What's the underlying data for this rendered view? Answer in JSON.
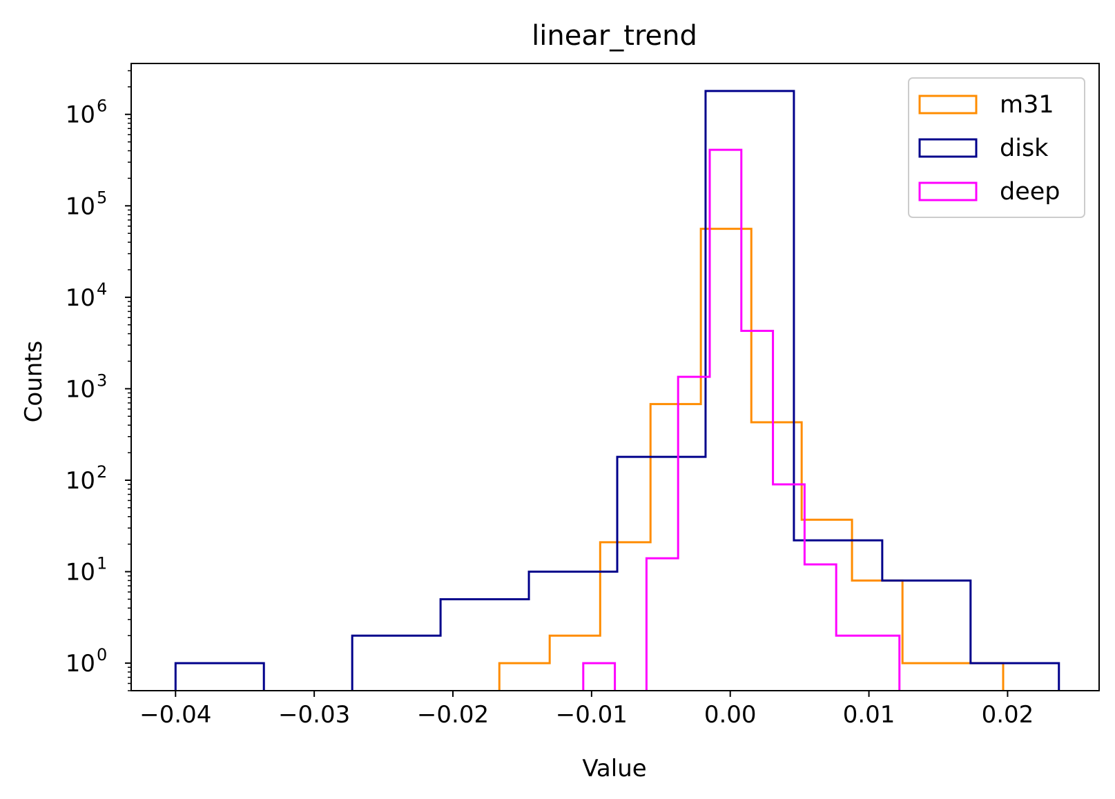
{
  "chart_data": {
    "type": "histogram",
    "title": "linear_trend",
    "xlabel": "Value",
    "ylabel": "Counts",
    "xlim": [
      -0.0432,
      0.0266
    ],
    "ylim": [
      0.5,
      3600000
    ],
    "yscale": "log",
    "grid": false,
    "legend_position": "top-right",
    "x_ticks": [
      {
        "value": -0.04,
        "label": "−0.04"
      },
      {
        "value": -0.03,
        "label": "−0.03"
      },
      {
        "value": -0.02,
        "label": "−0.02"
      },
      {
        "value": -0.01,
        "label": "−0.01"
      },
      {
        "value": 0.0,
        "label": "0.00"
      },
      {
        "value": 0.01,
        "label": "0.01"
      },
      {
        "value": 0.02,
        "label": "0.02"
      }
    ],
    "y_ticks": [
      {
        "value": 1,
        "base": "10",
        "exp": "0"
      },
      {
        "value": 10,
        "base": "10",
        "exp": "1"
      },
      {
        "value": 100,
        "base": "10",
        "exp": "2"
      },
      {
        "value": 1000,
        "base": "10",
        "exp": "3"
      },
      {
        "value": 10000,
        "base": "10",
        "exp": "4"
      },
      {
        "value": 100000,
        "base": "10",
        "exp": "5"
      },
      {
        "value": 1000000,
        "base": "10",
        "exp": "6"
      }
    ],
    "series": [
      {
        "name": "m31",
        "color": "#ff8c00",
        "edges": [
          -0.01665,
          -0.01302,
          -0.00938,
          -0.00575,
          -0.00212,
          0.00152,
          0.00515,
          0.00878,
          0.01242,
          0.01605,
          0.01968
        ],
        "counts": [
          1,
          2,
          21,
          680,
          56000,
          430,
          37,
          8,
          1,
          1
        ]
      },
      {
        "name": "disk",
        "color": "#00008b",
        "edges": [
          -0.04,
          -0.03363,
          -0.02726,
          -0.02089,
          -0.01452,
          -0.00815,
          -0.00178,
          0.00459,
          0.01096,
          0.01733,
          0.0237
        ],
        "counts": [
          1,
          0,
          2,
          5,
          10,
          180,
          1800000,
          22,
          8,
          1
        ]
      },
      {
        "name": "deep",
        "color": "#ff00ff",
        "edges": [
          -0.0106,
          -0.00832,
          -0.00604,
          -0.00376,
          -0.00148,
          0.0008,
          0.00308,
          0.00536,
          0.00764,
          0.00992,
          0.0122,
          0.01448
        ],
        "counts": [
          1,
          0,
          14,
          1350,
          410000,
          4300,
          90,
          12,
          2,
          2,
          0
        ]
      }
    ]
  }
}
